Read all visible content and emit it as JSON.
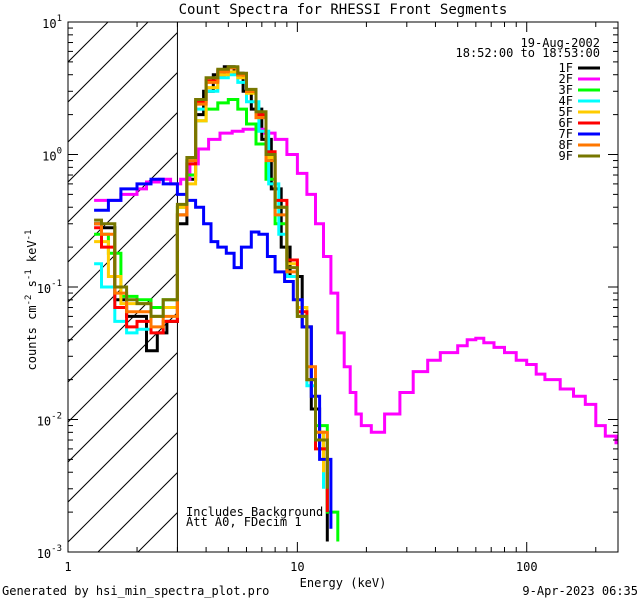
{
  "chart_data": {
    "type": "line",
    "title": "Count Spectra for RHESSI Front Segments",
    "xlabel": "Energy (keV)",
    "ylabel_parts": [
      "counts cm",
      "-2",
      " s",
      "-1",
      " keV",
      "-1"
    ],
    "xscale": "log",
    "yscale": "log",
    "xlim": [
      1,
      250
    ],
    "ylim": [
      0.001,
      10
    ],
    "x_ticks": [
      {
        "value": 1,
        "label": "1"
      },
      {
        "value": 10,
        "label": "10"
      },
      {
        "value": 100,
        "label": "100"
      }
    ],
    "y_ticks": [
      {
        "value": 0.001,
        "base": "10",
        "exp": "-3"
      },
      {
        "value": 0.01,
        "base": "10",
        "exp": "-2"
      },
      {
        "value": 0.1,
        "base": "10",
        "exp": "-1"
      },
      {
        "value": 1,
        "base": "10",
        "exp": "0"
      },
      {
        "value": 10,
        "base": "10",
        "exp": "1"
      }
    ],
    "hatched_region": [
      1,
      3
    ],
    "info_date": "19-Aug-2002",
    "info_time": "18:52:00 to 18:53:00",
    "annotation_line1": "Includes Background",
    "annotation_line2": "Att A0, FDecim 1",
    "legend_position": "top-right",
    "series": [
      {
        "name": "1F",
        "color": "#000000",
        "points": [
          [
            1.3,
            0.3
          ],
          [
            1.4,
            0.28
          ],
          [
            1.6,
            0.08
          ],
          [
            1.8,
            0.06
          ],
          [
            2.0,
            0.06
          ],
          [
            2.2,
            0.033
          ],
          [
            2.45,
            0.045
          ],
          [
            2.7,
            0.055
          ],
          [
            3.0,
            0.3
          ],
          [
            3.3,
            0.65
          ],
          [
            3.6,
            2.0
          ],
          [
            3.9,
            3.0
          ],
          [
            4.3,
            4.0
          ],
          [
            4.8,
            4.6
          ],
          [
            5.3,
            4.1
          ],
          [
            5.8,
            3.0
          ],
          [
            6.3,
            2.2
          ],
          [
            7.0,
            1.3
          ],
          [
            7.7,
            0.55
          ],
          [
            8.5,
            0.2
          ],
          [
            9.3,
            0.12
          ],
          [
            10.5,
            0.05
          ],
          [
            11.5,
            0.012
          ],
          [
            12.5,
            0.006
          ],
          [
            13.5,
            0.0012
          ]
        ]
      },
      {
        "name": "2F",
        "color": "#ff00ff",
        "points": [
          [
            1.3,
            0.45
          ],
          [
            1.5,
            0.45
          ],
          [
            1.7,
            0.5
          ],
          [
            2.0,
            0.55
          ],
          [
            2.2,
            0.62
          ],
          [
            2.5,
            0.65
          ],
          [
            2.8,
            0.6
          ],
          [
            3.1,
            0.65
          ],
          [
            3.4,
            0.85
          ],
          [
            3.7,
            1.1
          ],
          [
            4.1,
            1.3
          ],
          [
            4.6,
            1.45
          ],
          [
            5.2,
            1.5
          ],
          [
            5.8,
            1.55
          ],
          [
            6.5,
            1.55
          ],
          [
            7.2,
            1.45
          ],
          [
            8.0,
            1.3
          ],
          [
            9.0,
            1.0
          ],
          [
            10.0,
            0.72
          ],
          [
            11.0,
            0.5
          ],
          [
            12.0,
            0.3
          ],
          [
            13.0,
            0.17
          ],
          [
            14.0,
            0.09
          ],
          [
            15.0,
            0.045
          ],
          [
            16.0,
            0.025
          ],
          [
            17.0,
            0.016
          ],
          [
            18.0,
            0.011
          ],
          [
            19.0,
            0.009
          ],
          [
            21.0,
            0.008
          ],
          [
            24.0,
            0.011
          ],
          [
            28.0,
            0.016
          ],
          [
            32.0,
            0.023
          ],
          [
            37.0,
            0.028
          ],
          [
            42.0,
            0.032
          ],
          [
            50.0,
            0.036
          ],
          [
            55.0,
            0.04
          ],
          [
            60.0,
            0.041
          ],
          [
            65.0,
            0.038
          ],
          [
            72.0,
            0.035
          ],
          [
            80.0,
            0.032
          ],
          [
            90.0,
            0.028
          ],
          [
            100.0,
            0.026
          ],
          [
            110.0,
            0.022
          ],
          [
            120.0,
            0.02
          ],
          [
            140.0,
            0.017
          ],
          [
            160.0,
            0.015
          ],
          [
            180.0,
            0.013
          ],
          [
            200.0,
            0.009
          ],
          [
            220.0,
            0.0075
          ],
          [
            245.0,
            0.0065
          ]
        ]
      },
      {
        "name": "3F",
        "color": "#00ff00",
        "points": [
          [
            1.3,
            0.25
          ],
          [
            1.5,
            0.18
          ],
          [
            1.7,
            0.085
          ],
          [
            2.0,
            0.08
          ],
          [
            2.3,
            0.07
          ],
          [
            2.6,
            0.08
          ],
          [
            3.0,
            0.4
          ],
          [
            3.3,
            0.7
          ],
          [
            3.6,
            1.8
          ],
          [
            4.0,
            2.2
          ],
          [
            4.5,
            2.45
          ],
          [
            5.0,
            2.6
          ],
          [
            5.5,
            2.2
          ],
          [
            6.0,
            1.7
          ],
          [
            6.6,
            1.2
          ],
          [
            7.3,
            0.65
          ],
          [
            8.0,
            0.3
          ],
          [
            9.0,
            0.12
          ],
          [
            10.0,
            0.06
          ],
          [
            11.0,
            0.02
          ],
          [
            12.0,
            0.009
          ],
          [
            13.5,
            0.002
          ],
          [
            15.0,
            0.0012
          ]
        ]
      },
      {
        "name": "4F",
        "color": "#00ffff",
        "points": [
          [
            1.3,
            0.15
          ],
          [
            1.4,
            0.1
          ],
          [
            1.6,
            0.055
          ],
          [
            1.8,
            0.045
          ],
          [
            2.0,
            0.048
          ],
          [
            2.3,
            0.06
          ],
          [
            2.6,
            0.07
          ],
          [
            3.0,
            0.35
          ],
          [
            3.3,
            0.9
          ],
          [
            3.6,
            2.2
          ],
          [
            4.0,
            3.0
          ],
          [
            4.5,
            3.8
          ],
          [
            5.0,
            4.0
          ],
          [
            5.5,
            3.5
          ],
          [
            6.0,
            2.5
          ],
          [
            6.8,
            1.5
          ],
          [
            7.5,
            0.6
          ],
          [
            8.3,
            0.25
          ],
          [
            9.0,
            0.12
          ],
          [
            10.0,
            0.06
          ],
          [
            11.0,
            0.018
          ],
          [
            12.0,
            0.008
          ],
          [
            13.0,
            0.003
          ]
        ]
      },
      {
        "name": "5F",
        "color": "#ffcc00",
        "points": [
          [
            1.3,
            0.22
          ],
          [
            1.5,
            0.12
          ],
          [
            1.7,
            0.075
          ],
          [
            2.0,
            0.075
          ],
          [
            2.3,
            0.06
          ],
          [
            2.6,
            0.07
          ],
          [
            3.0,
            0.4
          ],
          [
            3.3,
            0.6
          ],
          [
            3.6,
            1.8
          ],
          [
            4.0,
            3.2
          ],
          [
            4.5,
            4.0
          ],
          [
            5.0,
            4.2
          ],
          [
            5.5,
            3.8
          ],
          [
            6.0,
            2.9
          ],
          [
            6.6,
            1.9
          ],
          [
            7.3,
            0.95
          ],
          [
            8.0,
            0.4
          ],
          [
            9.0,
            0.15
          ],
          [
            10.0,
            0.07
          ],
          [
            11.0,
            0.02
          ],
          [
            12.0,
            0.008
          ],
          [
            13.0,
            0.004
          ]
        ]
      },
      {
        "name": "6F",
        "color": "#ff0000",
        "points": [
          [
            1.3,
            0.28
          ],
          [
            1.4,
            0.2
          ],
          [
            1.6,
            0.07
          ],
          [
            1.8,
            0.05
          ],
          [
            2.0,
            0.055
          ],
          [
            2.3,
            0.045
          ],
          [
            2.6,
            0.055
          ],
          [
            3.0,
            0.35
          ],
          [
            3.3,
            0.85
          ],
          [
            3.6,
            2.5
          ],
          [
            4.0,
            3.6
          ],
          [
            4.5,
            4.3
          ],
          [
            5.0,
            4.5
          ],
          [
            5.5,
            4.0
          ],
          [
            6.0,
            3.0
          ],
          [
            6.6,
            2.0
          ],
          [
            7.3,
            1.05
          ],
          [
            8.0,
            0.45
          ],
          [
            9.0,
            0.16
          ],
          [
            10.0,
            0.065
          ],
          [
            11.0,
            0.02
          ],
          [
            12.0,
            0.006
          ],
          [
            13.5,
            0.002
          ]
        ]
      },
      {
        "name": "7F",
        "color": "#0000ff",
        "points": [
          [
            1.3,
            0.38
          ],
          [
            1.5,
            0.45
          ],
          [
            1.7,
            0.55
          ],
          [
            2.0,
            0.6
          ],
          [
            2.3,
            0.65
          ],
          [
            2.6,
            0.6
          ],
          [
            2.8,
            0.6
          ],
          [
            3.0,
            0.5
          ],
          [
            3.3,
            0.45
          ],
          [
            3.6,
            0.4
          ],
          [
            3.9,
            0.3
          ],
          [
            4.2,
            0.22
          ],
          [
            4.5,
            0.2
          ],
          [
            4.9,
            0.18
          ],
          [
            5.3,
            0.14
          ],
          [
            5.7,
            0.2
          ],
          [
            6.3,
            0.26
          ],
          [
            6.8,
            0.25
          ],
          [
            7.4,
            0.17
          ],
          [
            8.0,
            0.13
          ],
          [
            8.8,
            0.11
          ],
          [
            9.6,
            0.08
          ],
          [
            10.5,
            0.05
          ],
          [
            11.5,
            0.015
          ],
          [
            12.5,
            0.005
          ],
          [
            14.0,
            0.0015
          ]
        ]
      },
      {
        "name": "8F",
        "color": "#ff7700",
        "points": [
          [
            1.3,
            0.3
          ],
          [
            1.4,
            0.25
          ],
          [
            1.6,
            0.09
          ],
          [
            1.8,
            0.065
          ],
          [
            2.0,
            0.065
          ],
          [
            2.3,
            0.05
          ],
          [
            2.6,
            0.06
          ],
          [
            3.0,
            0.35
          ],
          [
            3.3,
            0.9
          ],
          [
            3.6,
            2.4
          ],
          [
            4.0,
            3.5
          ],
          [
            4.5,
            4.2
          ],
          [
            5.0,
            4.5
          ],
          [
            5.5,
            4.0
          ],
          [
            6.0,
            3.0
          ],
          [
            6.6,
            1.9
          ],
          [
            7.3,
            0.9
          ],
          [
            8.0,
            0.35
          ],
          [
            9.0,
            0.13
          ],
          [
            10.0,
            0.06
          ],
          [
            11.0,
            0.025
          ],
          [
            12.0,
            0.008
          ],
          [
            13.5,
            0.004
          ]
        ]
      },
      {
        "name": "9F",
        "color": "#777700",
        "points": [
          [
            1.3,
            0.32
          ],
          [
            1.4,
            0.3
          ],
          [
            1.6,
            0.1
          ],
          [
            1.8,
            0.08
          ],
          [
            2.0,
            0.075
          ],
          [
            2.3,
            0.06
          ],
          [
            2.6,
            0.08
          ],
          [
            3.0,
            0.42
          ],
          [
            3.3,
            0.95
          ],
          [
            3.6,
            2.6
          ],
          [
            4.0,
            3.8
          ],
          [
            4.5,
            4.4
          ],
          [
            5.0,
            4.6
          ],
          [
            5.5,
            4.1
          ],
          [
            6.0,
            3.1
          ],
          [
            6.6,
            2.1
          ],
          [
            7.3,
            1.0
          ],
          [
            8.0,
            0.4
          ],
          [
            9.0,
            0.14
          ],
          [
            10.0,
            0.06
          ],
          [
            11.0,
            0.02
          ],
          [
            12.0,
            0.007
          ],
          [
            13.5,
            0.003
          ]
        ]
      }
    ]
  },
  "footer": {
    "generated_by": "Generated by hsi_min_spectra_plot.pro",
    "timestamp": "9-Apr-2023 06:35"
  }
}
